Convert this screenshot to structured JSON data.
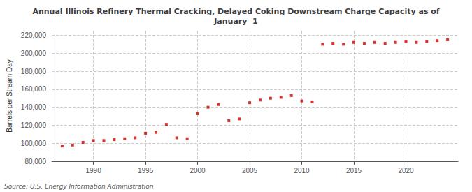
{
  "chart_data": {
    "type": "scatter",
    "title": "Annual Illinois Refinery Thermal Cracking, Delayed Coking Downstream Charge Capacity as of\nJanuary  1",
    "y_label": "Barrels per Stream Day",
    "source": "Source: U.S. Energy Information Administration",
    "color": "#cc0000",
    "marker": "square",
    "x": [
      1987,
      1988,
      1989,
      1990,
      1991,
      1992,
      1993,
      1994,
      1995,
      1996,
      1997,
      1998,
      1999,
      2000,
      2001,
      2002,
      2003,
      2004,
      2005,
      2006,
      2007,
      2008,
      2009,
      2010,
      2011,
      2012,
      2013,
      2014,
      2015,
      2016,
      2017,
      2018,
      2019,
      2020,
      2021,
      2022,
      2023,
      2024
    ],
    "values": [
      97000,
      98000,
      101000,
      103000,
      103000,
      104000,
      105000,
      106000,
      111000,
      112000,
      121000,
      106000,
      105000,
      133000,
      140000,
      143000,
      125000,
      127000,
      145000,
      148000,
      150000,
      151000,
      153000,
      147000,
      146000,
      210000,
      211000,
      210000,
      212000,
      211000,
      212000,
      211000,
      212000,
      213000,
      212000,
      213000,
      214000,
      215000
    ],
    "xlim": [
      1986,
      2025
    ],
    "xticks": [
      1990,
      1995,
      2000,
      2005,
      2010,
      2015,
      2020
    ],
    "ylim": [
      80000,
      225000
    ],
    "yticks": [
      {
        "value": 80000,
        "label": "80,000"
      },
      {
        "value": 100000,
        "label": "100,000"
      },
      {
        "value": 120000,
        "label": "120,000"
      },
      {
        "value": 140000,
        "label": "140,000"
      },
      {
        "value": 160000,
        "label": "160,000"
      },
      {
        "value": 180000,
        "label": "180,000"
      },
      {
        "value": 200000,
        "label": "200,000"
      },
      {
        "value": 220000,
        "label": "220,000"
      }
    ],
    "grid": true
  }
}
